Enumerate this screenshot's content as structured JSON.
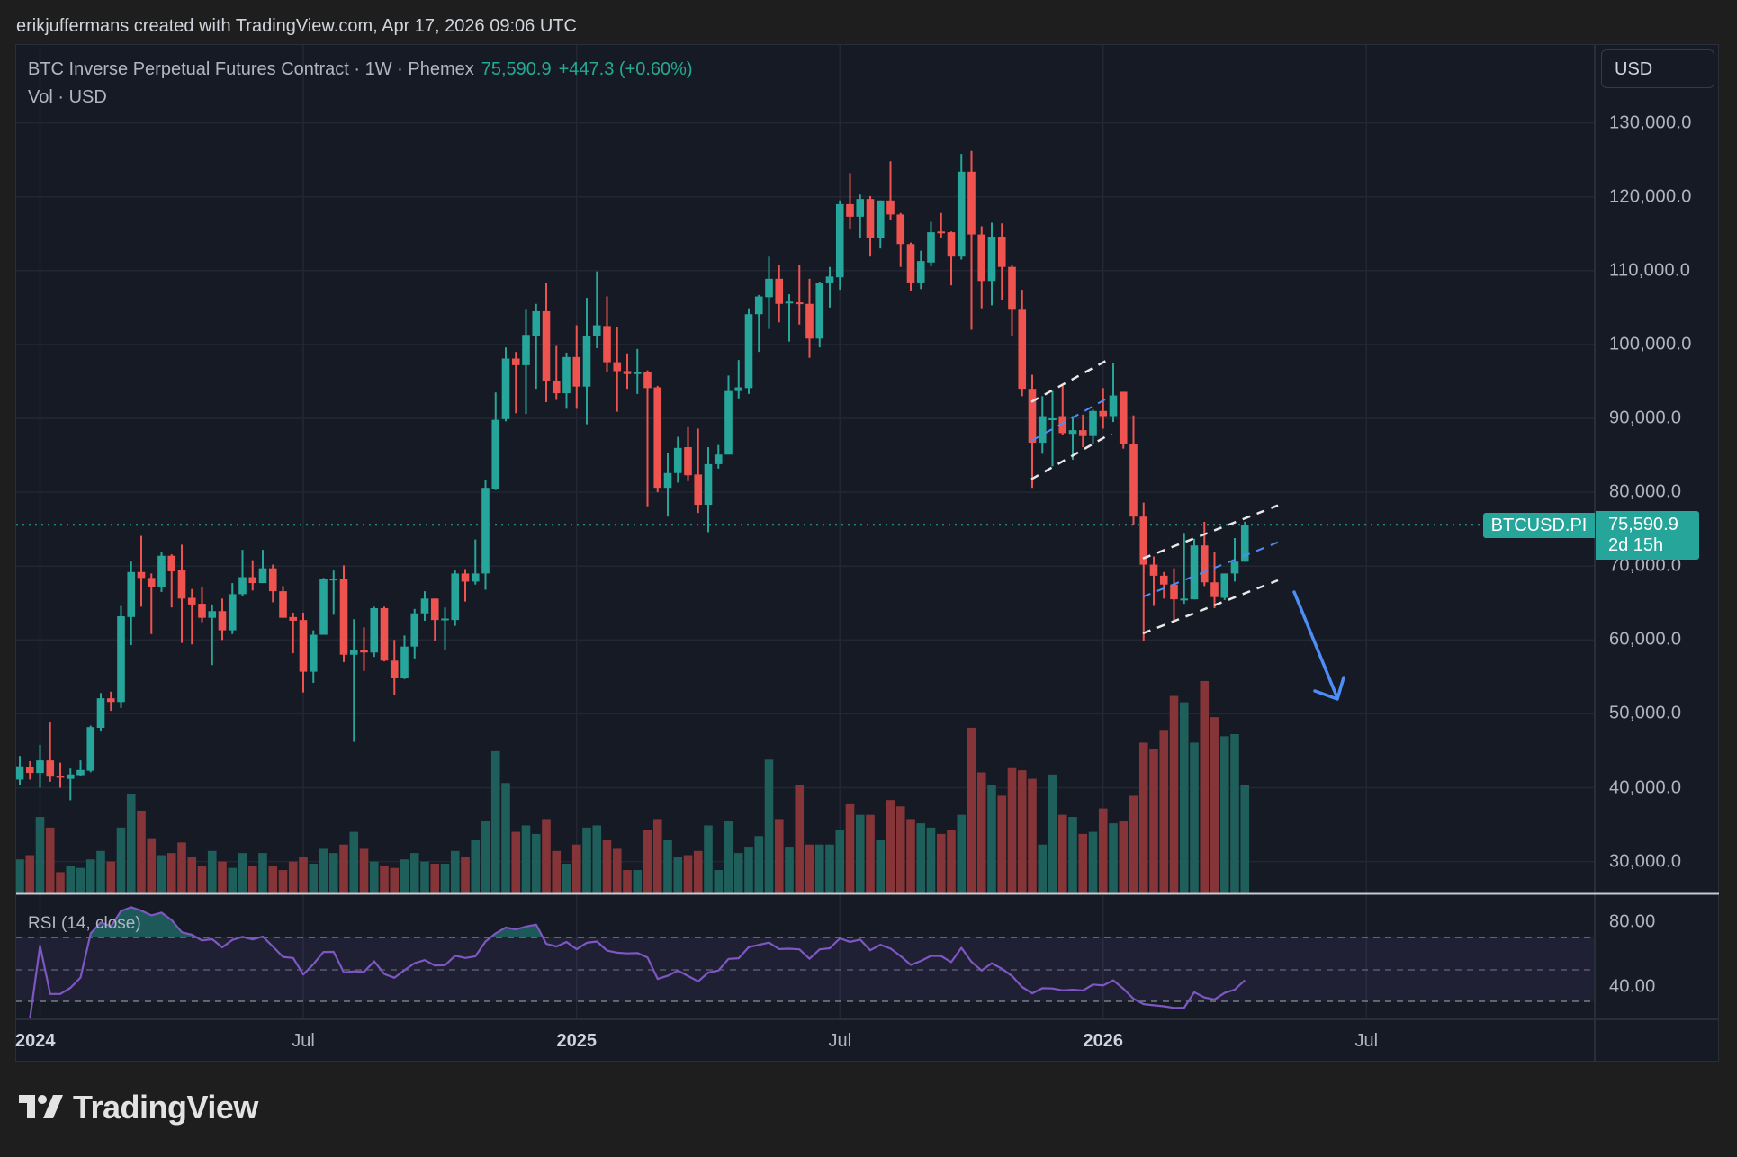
{
  "credit": "erikjuffermans created with TradingView.com, Apr 17, 2026 09:06 UTC",
  "legend": {
    "symbol_desc": "BTC Inverse Perpetual Futures Contract · 1W · Phemex",
    "last_price": "75,590.9",
    "change": "+447.3 (+0.60%)",
    "volume_label": "Vol · USD"
  },
  "currency_button": "USD",
  "price_tag": {
    "symbol": "BTCUSD.PI",
    "price": "75,590.9",
    "countdown": "2d 15h"
  },
  "rsi_label": "RSI (14, close)",
  "brand": {
    "logo_text": "TradingView"
  },
  "colors": {
    "up": "#26a69a",
    "down": "#ef5350",
    "vol_up": "#1e5f5c",
    "vol_down": "#853538",
    "rsi": "#7e57c2",
    "drawing_blue": "#4c8ef5",
    "background": "#161a25"
  },
  "chart_data": {
    "type": "candlestick",
    "interval": "1W",
    "ylim": [
      25000,
      135000
    ],
    "y_ticks": [
      "130,000.0",
      "120,000.0",
      "110,000.0",
      "100,000.0",
      "90,000.0",
      "80,000.0",
      "70,000.0",
      "60,000.0",
      "50,000.0",
      "40,000.0",
      "30,000.0"
    ],
    "y_tick_values": [
      130000,
      120000,
      110000,
      100000,
      90000,
      80000,
      70000,
      60000,
      50000,
      40000,
      30000
    ],
    "x_ticks": [
      {
        "label": "2024",
        "date": "2024-01-01",
        "bold": true
      },
      {
        "label": "Jul",
        "date": "2024-07-01",
        "bold": false
      },
      {
        "label": "2025",
        "date": "2025-01-06",
        "bold": true
      },
      {
        "label": "Jul",
        "date": "2025-07-07",
        "bold": false
      },
      {
        "label": "2026",
        "date": "2026-01-05",
        "bold": true
      },
      {
        "label": "Jul",
        "date": "2026-07-06",
        "bold": false
      }
    ],
    "rsi_ticks": [
      "80.00",
      "40.00"
    ],
    "rsi_tick_values": [
      80,
      40
    ],
    "rsi_bands": [
      70,
      50,
      30
    ],
    "grid": true,
    "current_price": 75590.9,
    "columns": [
      "date",
      "open",
      "high",
      "low",
      "close",
      "volume_pct_of_max"
    ],
    "candles": [
      [
        "2023-12-18",
        41100,
        44300,
        40400,
        42900,
        16
      ],
      [
        "2023-12-25",
        42800,
        43600,
        41100,
        42000,
        18
      ],
      [
        "2024-01-01",
        42000,
        45800,
        40000,
        43700,
        36
      ],
      [
        "2024-01-08",
        43700,
        48900,
        40800,
        41500,
        31
      ],
      [
        "2024-01-15",
        41600,
        43400,
        40000,
        41500,
        10
      ],
      [
        "2024-01-22",
        41200,
        42600,
        38300,
        41800,
        13
      ],
      [
        "2024-01-29",
        41700,
        43700,
        41600,
        42400,
        12
      ],
      [
        "2024-02-05",
        42300,
        48400,
        42100,
        48200,
        16
      ],
      [
        "2024-02-12",
        48100,
        52800,
        47600,
        52100,
        20
      ],
      [
        "2024-02-19",
        52100,
        53000,
        50400,
        51600,
        15
      ],
      [
        "2024-02-26",
        51600,
        64600,
        50800,
        63200,
        31
      ],
      [
        "2024-03-04",
        63100,
        70600,
        59300,
        69200,
        47
      ],
      [
        "2024-03-11",
        69200,
        74100,
        64500,
        68400,
        39
      ],
      [
        "2024-03-18",
        68400,
        69000,
        60800,
        67200,
        26
      ],
      [
        "2024-03-25",
        67200,
        71900,
        66500,
        71400,
        18
      ],
      [
        "2024-04-01",
        71400,
        71600,
        64400,
        69300,
        19
      ],
      [
        "2024-04-08",
        69500,
        72900,
        59600,
        65600,
        24
      ],
      [
        "2024-04-15",
        65700,
        66900,
        59400,
        64800,
        17
      ],
      [
        "2024-04-22",
        64900,
        67200,
        62400,
        63000,
        13
      ],
      [
        "2024-04-29",
        63000,
        64800,
        56600,
        63900,
        20
      ],
      [
        "2024-05-06",
        63900,
        65600,
        60000,
        61300,
        15
      ],
      [
        "2024-05-13",
        61300,
        67700,
        60800,
        66200,
        12
      ],
      [
        "2024-05-20",
        66200,
        72200,
        66000,
        68500,
        19
      ],
      [
        "2024-05-27",
        68500,
        70800,
        66700,
        67700,
        13
      ],
      [
        "2024-06-03",
        67700,
        72200,
        67700,
        69700,
        19
      ],
      [
        "2024-06-10",
        69700,
        70200,
        65100,
        66600,
        13
      ],
      [
        "2024-06-17",
        66600,
        67300,
        63000,
        63000,
        11
      ],
      [
        "2024-06-24",
        63100,
        63700,
        58200,
        62600,
        15
      ],
      [
        "2024-07-01",
        62700,
        63700,
        52900,
        55700,
        17
      ],
      [
        "2024-07-08",
        55700,
        61300,
        54200,
        60700,
        14
      ],
      [
        "2024-07-15",
        60700,
        68400,
        60700,
        68200,
        21
      ],
      [
        "2024-07-22",
        68200,
        69400,
        63400,
        68300,
        19
      ],
      [
        "2024-07-29",
        68300,
        70100,
        57000,
        58000,
        23
      ],
      [
        "2024-08-05",
        58000,
        62800,
        46200,
        58600,
        29
      ],
      [
        "2024-08-12",
        58600,
        61700,
        55800,
        58300,
        21
      ],
      [
        "2024-08-19",
        58300,
        64500,
        57700,
        64300,
        15
      ],
      [
        "2024-08-26",
        64300,
        64500,
        57100,
        57200,
        13
      ],
      [
        "2024-09-02",
        57200,
        60000,
        52500,
        54800,
        12
      ],
      [
        "2024-09-09",
        54800,
        60600,
        54700,
        59100,
        16
      ],
      [
        "2024-09-16",
        59100,
        64200,
        57500,
        63600,
        19
      ],
      [
        "2024-09-23",
        63600,
        66600,
        62600,
        65600,
        15
      ],
      [
        "2024-09-30",
        65600,
        65600,
        59800,
        62700,
        14
      ],
      [
        "2024-10-07",
        62800,
        64400,
        58700,
        62900,
        14
      ],
      [
        "2024-10-14",
        62700,
        69400,
        61900,
        69000,
        20
      ],
      [
        "2024-10-21",
        69000,
        69600,
        65200,
        67900,
        17
      ],
      [
        "2024-10-28",
        67900,
        73600,
        67500,
        69000,
        25
      ],
      [
        "2024-11-04",
        69000,
        81700,
        66800,
        80600,
        34
      ],
      [
        "2024-11-11",
        80400,
        93500,
        80300,
        89800,
        67
      ],
      [
        "2024-11-18",
        89900,
        99600,
        89600,
        98100,
        52
      ],
      [
        "2024-11-25",
        98100,
        99000,
        90700,
        97200,
        29
      ],
      [
        "2024-12-02",
        97200,
        104700,
        90600,
        101300,
        32
      ],
      [
        "2024-12-09",
        101200,
        105500,
        94000,
        104500,
        28
      ],
      [
        "2024-12-16",
        104500,
        108300,
        92200,
        95000,
        35
      ],
      [
        "2024-12-23",
        95100,
        99800,
        92500,
        93400,
        20
      ],
      [
        "2024-12-30",
        93400,
        98900,
        91300,
        98300,
        14
      ],
      [
        "2025-01-06",
        98300,
        102600,
        91300,
        94300,
        23
      ],
      [
        "2025-01-13",
        94300,
        106300,
        89200,
        101200,
        31
      ],
      [
        "2025-01-20",
        101200,
        109900,
        99500,
        102600,
        32
      ],
      [
        "2025-01-27",
        102500,
        106500,
        96200,
        97600,
        25
      ],
      [
        "2025-02-03",
        97600,
        102400,
        90900,
        96400,
        21
      ],
      [
        "2025-02-10",
        96400,
        98800,
        94000,
        96000,
        11
      ],
      [
        "2025-02-17",
        96000,
        99400,
        93300,
        96300,
        11
      ],
      [
        "2025-02-24",
        96300,
        96500,
        78100,
        94100,
        30
      ],
      [
        "2025-03-03",
        94200,
        94400,
        80000,
        80600,
        35
      ],
      [
        "2025-03-10",
        80600,
        85300,
        76700,
        82600,
        25
      ],
      [
        "2025-03-17",
        82600,
        87500,
        81300,
        86000,
        17
      ],
      [
        "2025-03-24",
        86100,
        88800,
        81500,
        82300,
        18
      ],
      [
        "2025-03-31",
        82400,
        88600,
        77200,
        78300,
        20
      ],
      [
        "2025-04-07",
        78300,
        86100,
        74600,
        83800,
        32
      ],
      [
        "2025-04-14",
        83800,
        86400,
        83200,
        85100,
        11
      ],
      [
        "2025-04-21",
        85100,
        95800,
        85100,
        93700,
        34
      ],
      [
        "2025-04-28",
        93700,
        97900,
        92700,
        94200,
        19
      ],
      [
        "2025-05-05",
        94100,
        104900,
        93300,
        104100,
        22
      ],
      [
        "2025-05-12",
        104100,
        106700,
        99000,
        106500,
        27
      ],
      [
        "2025-05-19",
        106400,
        111900,
        102100,
        108900,
        63
      ],
      [
        "2025-05-26",
        108900,
        110800,
        103000,
        105500,
        35
      ],
      [
        "2025-06-02",
        105600,
        106800,
        100400,
        105800,
        22
      ],
      [
        "2025-06-09",
        105700,
        110700,
        102700,
        105500,
        51
      ],
      [
        "2025-06-16",
        105500,
        108900,
        98200,
        100800,
        23
      ],
      [
        "2025-06-23",
        100800,
        108500,
        99600,
        108300,
        23
      ],
      [
        "2025-06-30",
        108300,
        110500,
        105000,
        109200,
        23
      ],
      [
        "2025-07-07",
        109100,
        119500,
        107400,
        119000,
        30
      ],
      [
        "2025-07-14",
        119000,
        123200,
        115700,
        117300,
        42
      ],
      [
        "2025-07-21",
        117300,
        120300,
        114400,
        119700,
        37
      ],
      [
        "2025-07-28",
        119700,
        120100,
        111900,
        114400,
        37
      ],
      [
        "2025-08-04",
        114400,
        119500,
        113000,
        119500,
        25
      ],
      [
        "2025-08-11",
        119500,
        124800,
        116900,
        117600,
        44
      ],
      [
        "2025-08-18",
        117600,
        117800,
        110500,
        113600,
        41
      ],
      [
        "2025-08-25",
        113600,
        113800,
        107300,
        108400,
        35
      ],
      [
        "2025-09-01",
        108400,
        112700,
        107500,
        111300,
        33
      ],
      [
        "2025-09-08",
        111100,
        116600,
        110600,
        115200,
        31
      ],
      [
        "2025-09-15",
        115300,
        117800,
        114400,
        115100,
        28
      ],
      [
        "2025-09-22",
        115200,
        115300,
        108000,
        111900,
        30
      ],
      [
        "2025-09-29",
        111900,
        125800,
        111500,
        123400,
        37
      ],
      [
        "2025-10-06",
        123400,
        126200,
        102000,
        114900,
        78
      ],
      [
        "2025-10-13",
        114900,
        116000,
        104900,
        108600,
        57
      ],
      [
        "2025-10-20",
        108600,
        116500,
        105300,
        114600,
        51
      ],
      [
        "2025-10-27",
        114600,
        116400,
        106000,
        110500,
        46
      ],
      [
        "2025-11-03",
        110500,
        110700,
        101100,
        104700,
        59
      ],
      [
        "2025-11-10",
        104700,
        107400,
        93000,
        94000,
        58
      ],
      [
        "2025-11-17",
        94000,
        95900,
        80600,
        86700,
        54
      ],
      [
        "2025-11-24",
        86700,
        93000,
        85200,
        90300,
        23
      ],
      [
        "2025-12-01",
        89900,
        93700,
        83500,
        90000,
        56
      ],
      [
        "2025-12-08",
        90300,
        94600,
        87700,
        88000,
        37
      ],
      [
        "2025-12-15",
        87900,
        90300,
        84400,
        88400,
        36
      ],
      [
        "2025-12-22",
        88400,
        90500,
        86100,
        87600,
        28
      ],
      [
        "2025-12-29",
        87600,
        91200,
        86600,
        91000,
        29
      ],
      [
        "2026-01-05",
        91000,
        94100,
        88600,
        90300,
        40
      ],
      [
        "2026-01-12",
        90300,
        97500,
        89500,
        93100,
        33
      ],
      [
        "2026-01-19",
        93600,
        93600,
        85900,
        86500,
        34
      ],
      [
        "2026-01-26",
        86500,
        90400,
        75600,
        76700,
        46
      ],
      [
        "2026-02-02",
        76700,
        78600,
        59800,
        70200,
        71
      ],
      [
        "2026-02-09",
        70200,
        71300,
        64600,
        68700,
        68
      ],
      [
        "2026-02-16",
        68700,
        69200,
        65600,
        67500,
        77
      ],
      [
        "2026-02-23",
        67500,
        69700,
        62400,
        65500,
        93
      ],
      [
        "2026-03-02",
        65400,
        74500,
        64900,
        65600,
        90
      ],
      [
        "2026-03-09",
        65500,
        73700,
        65500,
        72800,
        71
      ],
      [
        "2026-03-16",
        72800,
        76000,
        67300,
        67800,
        100
      ],
      [
        "2026-03-23",
        67800,
        71900,
        64300,
        65800,
        83
      ],
      [
        "2026-03-30",
        65700,
        69000,
        65400,
        69000,
        74
      ],
      [
        "2026-04-06",
        69000,
        73800,
        67900,
        70600,
        75
      ],
      [
        "2026-04-13",
        70600,
        76000,
        70600,
        75590.9,
        51
      ]
    ]
  }
}
